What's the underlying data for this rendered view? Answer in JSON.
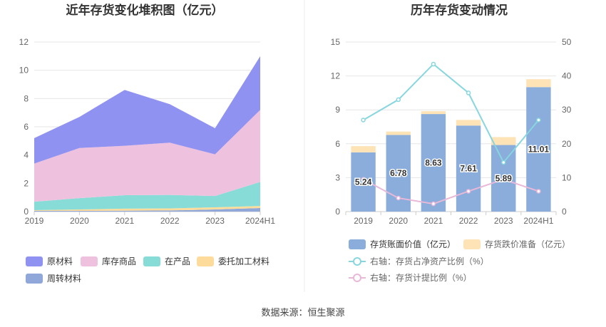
{
  "source": "数据来源：恒生聚源",
  "chart_data": [
    {
      "type": "area",
      "stacked": true,
      "title": "近年存货变化堆积图（亿元）",
      "categories": [
        "2019",
        "2020",
        "2021",
        "2022",
        "2023",
        "2024H1"
      ],
      "ylim": [
        0,
        12
      ],
      "yticks": [
        "0",
        "2",
        "4",
        "6",
        "8",
        "10",
        "12"
      ],
      "series": [
        {
          "name": "周转材料",
          "color": "#8fa8d9",
          "values": [
            0.05,
            0.05,
            0.06,
            0.08,
            0.15,
            0.25
          ]
        },
        {
          "name": "委托加工材料",
          "color": "#fddc9b",
          "values": [
            0.05,
            0.1,
            0.15,
            0.15,
            0.15,
            0.15
          ]
        },
        {
          "name": "在产品",
          "color": "#88dcd8",
          "values": [
            0.6,
            0.8,
            0.95,
            0.95,
            0.8,
            1.7
          ]
        },
        {
          "name": "库存商品",
          "color": "#eec2de",
          "values": [
            2.7,
            3.55,
            3.5,
            3.7,
            2.95,
            5.1
          ]
        },
        {
          "name": "原材料",
          "color": "#8f92f0",
          "values": [
            1.8,
            2.2,
            3.95,
            2.72,
            1.85,
            3.8
          ]
        }
      ],
      "legend": [
        "原材料",
        "库存商品",
        "在产品",
        "委托加工材料",
        "周转材料"
      ]
    },
    {
      "type": "bar",
      "title": "历年存货变动情况",
      "categories": [
        "2019",
        "2020",
        "2021",
        "2022",
        "2023",
        "2024H1"
      ],
      "ylim_left": [
        0,
        15
      ],
      "yticks_left": [
        "0",
        "3",
        "6",
        "9",
        "12",
        "15"
      ],
      "ylim_right": [
        0,
        50
      ],
      "yticks_right": [
        "0",
        "10",
        "20",
        "30",
        "40",
        "50"
      ],
      "series": [
        {
          "name": "存货账面价值（亿元）",
          "kind": "bar",
          "color": "#8aaddb",
          "values": [
            5.24,
            6.78,
            8.63,
            7.61,
            5.89,
            11.01
          ],
          "labels": [
            "5.24",
            "6.78",
            "8.63",
            "7.61",
            "5.89",
            "11.01"
          ]
        },
        {
          "name": "存货跌价准备（亿元）",
          "kind": "bar-stack",
          "color": "#fde3b5",
          "values": [
            0.55,
            0.3,
            0.25,
            0.5,
            0.7,
            0.7
          ]
        },
        {
          "name": "右轴：存货占净资产比例（%）",
          "kind": "line",
          "axis": "right",
          "color": "#88d6de",
          "values": [
            27,
            33,
            43.5,
            35,
            14.5,
            27
          ]
        },
        {
          "name": "右轴：存货计提比例（%）",
          "kind": "line",
          "axis": "right",
          "color": "#e9b8d8",
          "values": [
            9.5,
            4,
            2.3,
            6,
            9.5,
            6
          ]
        }
      ]
    }
  ]
}
